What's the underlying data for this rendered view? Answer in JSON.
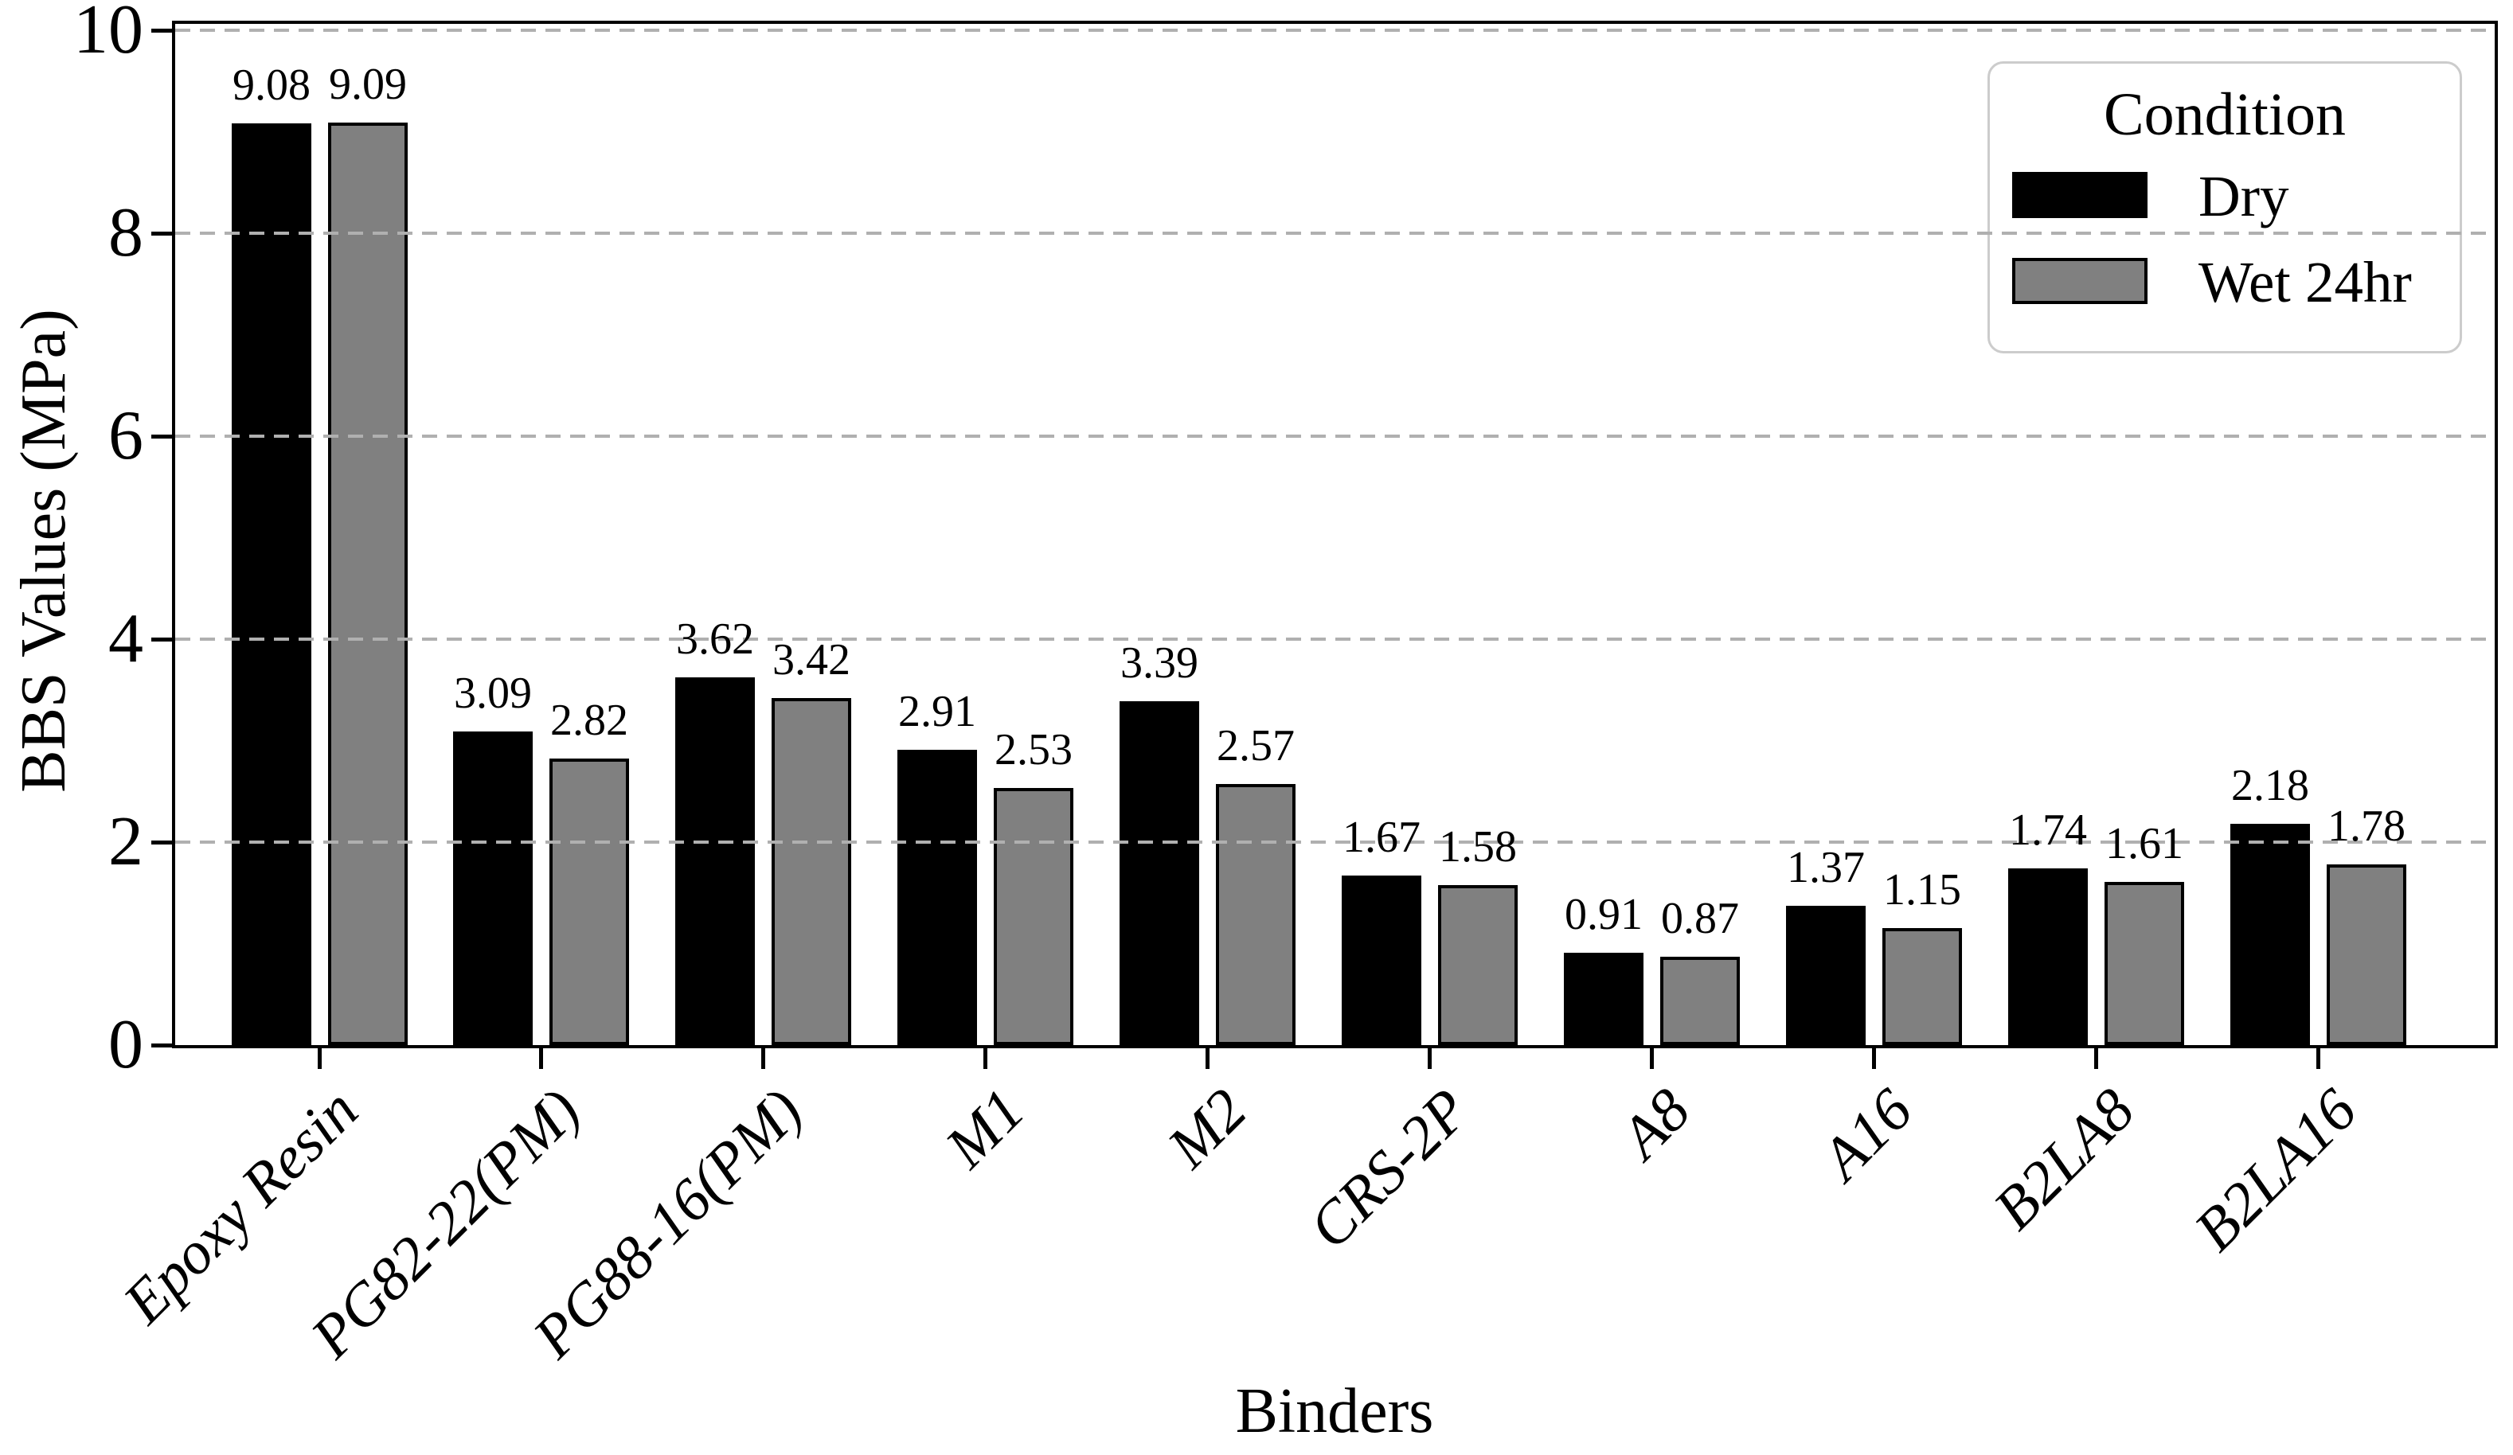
{
  "figure": {
    "background_color": "#ffffff",
    "xlabel": "Binders",
    "ylabel": "BBS Values (MPa)"
  },
  "legend": {
    "title": "Condition",
    "items": [
      {
        "label": "Dry",
        "color": "#000000"
      },
      {
        "label": "Wet 24hr",
        "color": "#808080"
      }
    ]
  },
  "chart_data": {
    "type": "bar",
    "title": "",
    "xlabel": "Binders",
    "ylabel": "BBS Values (MPa)",
    "categories": [
      "Epoxy Resin",
      "PG82-22(PM)",
      "PG88-16(PM)",
      "M1",
      "M2",
      "CRS-2P",
      "A8",
      "A16",
      "B2LA8",
      "B2LA16"
    ],
    "series": [
      {
        "name": "Dry",
        "color": "#000000",
        "values": [
          9.08,
          3.09,
          3.62,
          2.91,
          3.39,
          1.67,
          0.91,
          1.37,
          1.74,
          2.18
        ]
      },
      {
        "name": "Wet 24hr",
        "color": "#808080",
        "values": [
          9.09,
          2.82,
          3.42,
          2.53,
          2.57,
          1.58,
          0.87,
          1.15,
          1.61,
          1.78
        ]
      }
    ],
    "ylim": [
      0,
      10
    ],
    "yticks": [
      0,
      2,
      4,
      6,
      8,
      10
    ],
    "grid": "horizontal dashed gridlines at y ticks, drawn above bars",
    "grid_color": "#b0b0b0",
    "bar_edge_color": "#000000",
    "value_labels": true,
    "value_label_decimals": 2,
    "legend_position": "upper right",
    "xtick_label_style": "italic, rotated 45 degrees"
  }
}
